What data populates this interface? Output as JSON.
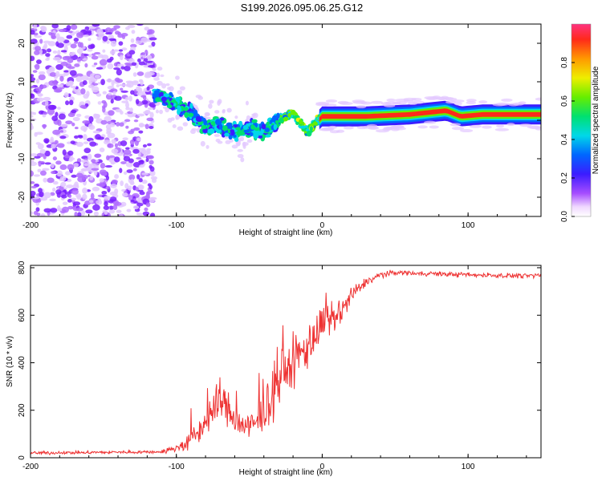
{
  "title": "S199.2026.095.06.25.G12",
  "chart_data": [
    {
      "type": "heatmap",
      "name": "spectrogram",
      "xlabel": "Height of straight line (km)",
      "ylabel": "Frequency (Hz)",
      "xlim": [
        -200,
        150
      ],
      "ylim": [
        -25,
        25
      ],
      "xticks": [
        -200,
        -100,
        0,
        100
      ],
      "yticks": [
        -20,
        -10,
        0,
        10,
        20
      ],
      "colorbar": {
        "label": "Normalized spectral amplitude",
        "range": [
          0.0,
          1.0
        ],
        "ticks": [
          "0.0",
          "0.2",
          "0.4",
          "0.6",
          "0.8"
        ]
      },
      "ridge": {
        "description_points_x": [
          -115,
          -100,
          -90,
          -80,
          -70,
          -60,
          -50,
          -40,
          -30,
          -20,
          -10,
          -5,
          0,
          10,
          30,
          60,
          85,
          95,
          110,
          130,
          150
        ],
        "description_points_freq": [
          7,
          4,
          2,
          -2,
          -1,
          -3,
          -2,
          -3,
          0,
          2,
          -3,
          -1,
          1,
          1,
          1,
          1.5,
          2.5,
          1,
          1.5,
          1.5,
          1.5
        ],
        "noise_region_x": [
          -200,
          -115
        ]
      }
    },
    {
      "type": "line",
      "name": "snr",
      "xlabel": "Height of straight line (km)",
      "ylabel": "SNR (10 * v/v)",
      "xlim": [
        -200,
        150
      ],
      "ylim": [
        0,
        810
      ],
      "xticks": [
        -200,
        -100,
        0,
        100
      ],
      "yticks": [
        0,
        200,
        400,
        600,
        800
      ],
      "color": "#ee3333",
      "trend_x": [
        -200,
        -110,
        -100,
        -90,
        -80,
        -70,
        -60,
        -50,
        -40,
        -30,
        -20,
        -10,
        0,
        10,
        20,
        30,
        40,
        50,
        100,
        150
      ],
      "trend_y": [
        20,
        25,
        40,
        70,
        150,
        250,
        160,
        120,
        180,
        330,
        400,
        470,
        560,
        590,
        680,
        740,
        770,
        780,
        770,
        765
      ],
      "spread_y": [
        10,
        10,
        30,
        60,
        100,
        150,
        90,
        100,
        130,
        160,
        180,
        150,
        120,
        100,
        60,
        30,
        20,
        15,
        15,
        15
      ]
    }
  ]
}
